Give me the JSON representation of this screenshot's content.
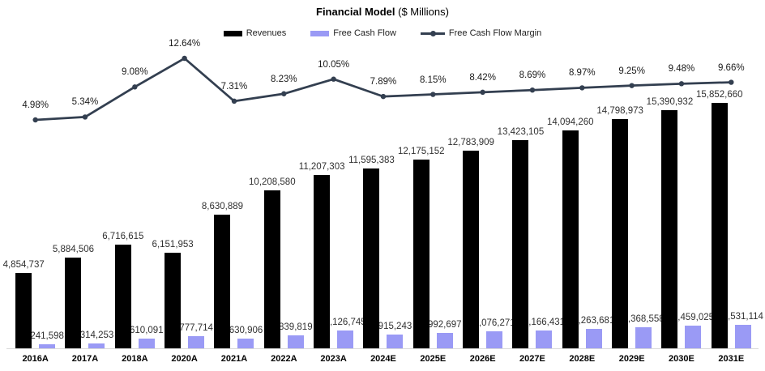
{
  "title": {
    "bold": "Financial Model",
    "normal": " ($ Millions)"
  },
  "colors": {
    "revenue_bar": "#000000",
    "fcf_bar": "#9a9af5",
    "margin_line": "#333f50",
    "axis_line": "#d9d9d9",
    "background": "#ffffff"
  },
  "chart_data": {
    "type": "bar",
    "subtype": "clustered-bar-with-line",
    "title": "Financial Model ($ Millions)",
    "xlabel": "",
    "ylabel": "",
    "gridlines": false,
    "value_axis_visible": false,
    "legend_position": "top",
    "ylim": [
      0,
      16200000
    ],
    "secondary_ylim_percent": [
      0,
      14
    ],
    "categories": [
      "2016A",
      "2017A",
      "2018A",
      "2020A",
      "2021A",
      "2022A",
      "2023A",
      "2024E",
      "2025E",
      "2026E",
      "2027E",
      "2028E",
      "2029E",
      "2030E",
      "2031E"
    ],
    "series": [
      {
        "name": "Revenues",
        "type": "bar",
        "color": "#000000",
        "values": [
          4854737,
          5884506,
          6716615,
          6151953,
          8630889,
          10208580,
          11207303,
          11595383,
          12175152,
          12783909,
          13423105,
          14094260,
          14798973,
          15390932,
          15852660
        ],
        "labels": [
          "4,854,737",
          "5,884,506",
          "6,716,615",
          "6,151,953",
          "8,630,889",
          "10,208,580",
          "11,207,303",
          "11,595,383",
          "12,175,152",
          "12,783,909",
          "13,423,105",
          "14,094,260",
          "14,798,973",
          "15,390,932",
          "15,852,660"
        ]
      },
      {
        "name": "Free Cash Flow",
        "type": "bar",
        "color": "#9a9af5",
        "values": [
          241598,
          314253,
          610091,
          777714,
          630906,
          839819,
          1126745,
          915243,
          992697,
          1076271,
          1166431,
          1263681,
          1368558,
          1459025,
          1531114
        ],
        "labels": [
          "241,598",
          "314,253",
          "610,091",
          "777,714",
          "630,906",
          "839,819",
          "1,126,745",
          "915,243",
          "992,697",
          "1,076,271",
          "1,166,431",
          "1,263,681",
          "1,368,558",
          "1,459,025",
          "1,531,114"
        ]
      },
      {
        "name": "Free Cash Flow Margin",
        "type": "line",
        "color": "#333f50",
        "values": [
          4.98,
          5.34,
          9.08,
          12.64,
          7.31,
          8.23,
          10.05,
          7.89,
          8.15,
          8.42,
          8.69,
          8.97,
          9.25,
          9.48,
          9.66
        ],
        "labels": [
          "4.98%",
          "5.34%",
          "9.08%",
          "12.64%",
          "7.31%",
          "8.23%",
          "10.05%",
          "7.89%",
          "8.15%",
          "8.42%",
          "8.69%",
          "8.97%",
          "9.25%",
          "9.48%",
          "9.66%"
        ]
      }
    ]
  }
}
